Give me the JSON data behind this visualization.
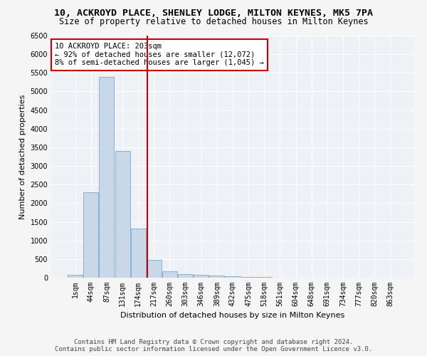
{
  "title": "10, ACKROYD PLACE, SHENLEY LODGE, MILTON KEYNES, MK5 7PA",
  "subtitle": "Size of property relative to detached houses in Milton Keynes",
  "xlabel": "Distribution of detached houses by size in Milton Keynes",
  "ylabel": "Number of detached properties",
  "bar_color": "#c8d8e8",
  "bar_edge_color": "#7aaac8",
  "vline_color": "#cc0000",
  "annotation_text": "10 ACKROYD PLACE: 203sqm\n← 92% of detached houses are smaller (12,072)\n8% of semi-detached houses are larger (1,045) →",
  "annotation_box_color": "#ffffff",
  "annotation_box_edge_color": "#cc0000",
  "categories": [
    "1sqm",
    "44sqm",
    "87sqm",
    "131sqm",
    "174sqm",
    "217sqm",
    "260sqm",
    "303sqm",
    "346sqm",
    "389sqm",
    "432sqm",
    "475sqm",
    "518sqm",
    "561sqm",
    "604sqm",
    "648sqm",
    "691sqm",
    "734sqm",
    "777sqm",
    "820sqm",
    "863sqm"
  ],
  "values": [
    75,
    2300,
    5400,
    3400,
    1325,
    475,
    175,
    100,
    75,
    50,
    30,
    20,
    10,
    5,
    3,
    2,
    1,
    1,
    0,
    0,
    0
  ],
  "ylim": [
    0,
    6500
  ],
  "yticks": [
    0,
    500,
    1000,
    1500,
    2000,
    2500,
    3000,
    3500,
    4000,
    4500,
    5000,
    5500,
    6000,
    6500
  ],
  "bg_color": "#eef2f6",
  "grid_color": "#ffffff",
  "title_fontsize": 9.5,
  "subtitle_fontsize": 8.5,
  "tick_fontsize": 7,
  "ylabel_fontsize": 8,
  "xlabel_fontsize": 8,
  "footer_fontsize": 6.5,
  "footer_line1": "Contains HM Land Registry data © Crown copyright and database right 2024.",
  "footer_line2": "Contains public sector information licensed under the Open Government Licence v3.0."
}
